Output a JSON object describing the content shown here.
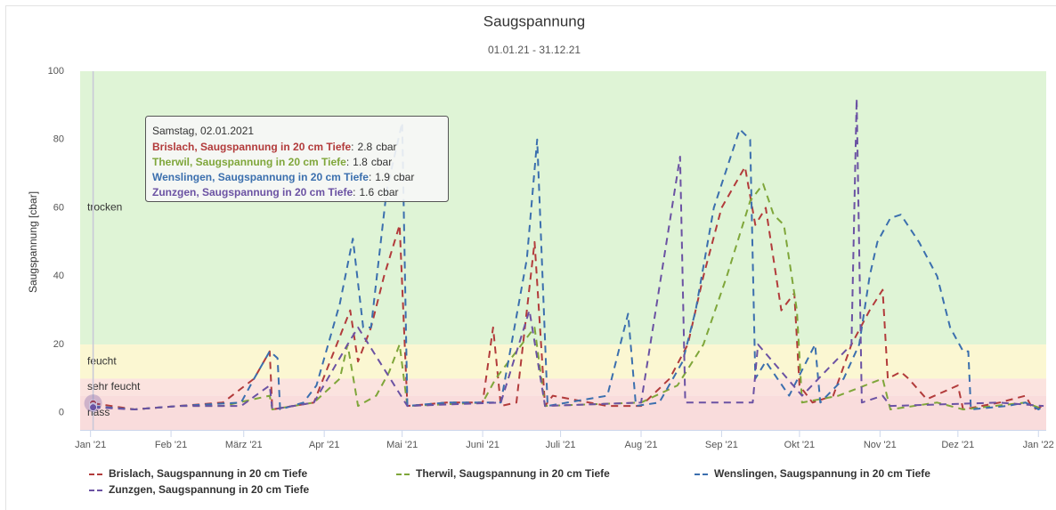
{
  "chart_data": {
    "type": "line",
    "title": "Saugspannung",
    "subtitle": "01.01.21 - 31.12.21",
    "y_label": "Saugspannung [cbar]",
    "ylim": [
      -5,
      100
    ],
    "yticks": [
      0,
      20,
      40,
      60,
      80,
      100
    ],
    "xlim": [
      "2020-12-28",
      "2022-01-04"
    ],
    "xticks": [
      {
        "value": "2021-01-01",
        "label": "Jan '21"
      },
      {
        "value": "2021-02-01",
        "label": "Feb '21"
      },
      {
        "value": "2021-03-01",
        "label": "März '21"
      },
      {
        "value": "2021-04-01",
        "label": "Apr '21"
      },
      {
        "value": "2021-05-01",
        "label": "Mai '21"
      },
      {
        "value": "2021-06-01",
        "label": "Juni '21"
      },
      {
        "value": "2021-07-01",
        "label": "Juli '21"
      },
      {
        "value": "2021-08-01",
        "label": "Aug '21"
      },
      {
        "value": "2021-09-01",
        "label": "Sep '21"
      },
      {
        "value": "2021-10-01",
        "label": "Okt '21"
      },
      {
        "value": "2021-11-01",
        "label": "Nov '21"
      },
      {
        "value": "2021-12-01",
        "label": "Dez '21"
      },
      {
        "value": "2022-01-01",
        "label": "Jan '22"
      }
    ],
    "plot_bands": [
      {
        "from": 20,
        "to": 100,
        "label": "trocken",
        "color": "#dff4d6"
      },
      {
        "from": 10,
        "to": 20,
        "label": "feucht",
        "color": "#fbf7d2"
      },
      {
        "from": 5,
        "to": 10,
        "label": "sehr feucht",
        "color": "#fbe3df"
      },
      {
        "from": -5,
        "to": 5,
        "label": "nass",
        "color": "#f9dcdc"
      }
    ],
    "series": [
      {
        "name": "Brislach, Saugspannung in 20 cm Tiefe",
        "color": "#b23b3b",
        "x": [
          "2021-01-02",
          "2021-01-18",
          "2021-02-04",
          "2021-02-21",
          "2021-03-05",
          "2021-03-11",
          "2021-03-12",
          "2021-03-28",
          "2021-04-11",
          "2021-04-14",
          "2021-04-19",
          "2021-04-24",
          "2021-04-30",
          "2021-05-03",
          "2021-05-18",
          "2021-06-01",
          "2021-06-05",
          "2021-06-08",
          "2021-06-14",
          "2021-06-21",
          "2021-06-25",
          "2021-06-28",
          "2021-07-19",
          "2021-08-01",
          "2021-08-12",
          "2021-08-19",
          "2021-08-25",
          "2021-09-01",
          "2021-09-10",
          "2021-09-14",
          "2021-09-18",
          "2021-09-24",
          "2021-09-29",
          "2021-10-01",
          "2021-10-06",
          "2021-10-14",
          "2021-10-21",
          "2021-10-28",
          "2021-11-02",
          "2021-11-04",
          "2021-11-09",
          "2021-11-12",
          "2021-11-19",
          "2021-12-01",
          "2021-12-03",
          "2021-12-17",
          "2021-12-27",
          "2021-12-30",
          "2022-01-03"
        ],
        "values": [
          2.8,
          1,
          2,
          3,
          10,
          18,
          1,
          3,
          30,
          15,
          25,
          40,
          55,
          2,
          3,
          3,
          25,
          2,
          3,
          50,
          2,
          5,
          2,
          2,
          10,
          20,
          40,
          60,
          72,
          55,
          60,
          30,
          35,
          8,
          3,
          5,
          20,
          30,
          36,
          10,
          12,
          10,
          4,
          8,
          1,
          3,
          5,
          1,
          2
        ]
      },
      {
        "name": "Therwil, Saugspannung in 20 cm Tiefe",
        "color": "#7fa63a",
        "x": [
          "2021-01-02",
          "2021-01-18",
          "2021-02-04",
          "2021-02-21",
          "2021-03-11",
          "2021-03-12",
          "2021-03-28",
          "2021-04-07",
          "2021-04-10",
          "2021-04-14",
          "2021-04-21",
          "2021-04-26",
          "2021-04-30",
          "2021-05-03",
          "2021-06-01",
          "2021-06-06",
          "2021-06-21",
          "2021-06-25",
          "2021-08-01",
          "2021-08-15",
          "2021-08-25",
          "2021-09-03",
          "2021-09-12",
          "2021-09-17",
          "2021-09-21",
          "2021-09-25",
          "2021-09-30",
          "2021-10-02",
          "2021-10-16",
          "2021-11-02",
          "2021-11-05",
          "2021-11-23",
          "2021-12-03",
          "2021-12-27",
          "2022-01-03"
        ],
        "values": [
          1.8,
          1,
          2,
          2,
          5,
          1,
          3,
          10,
          20,
          2,
          5,
          12,
          20,
          2,
          3,
          10,
          25,
          2,
          3,
          8,
          20,
          40,
          62,
          67,
          58,
          55,
          30,
          3,
          5,
          10,
          1,
          3,
          1,
          3,
          1
        ]
      },
      {
        "name": "Wenslingen, Saugspannung in 20 cm Tiefe",
        "color": "#3b6fae",
        "x": [
          "2021-01-02",
          "2021-01-18",
          "2021-02-04",
          "2021-02-28",
          "2021-03-05",
          "2021-03-11",
          "2021-03-14",
          "2021-03-15",
          "2021-03-24",
          "2021-03-29",
          "2021-04-07",
          "2021-04-12",
          "2021-04-16",
          "2021-04-19",
          "2021-04-25",
          "2021-05-01",
          "2021-05-03",
          "2021-05-18",
          "2021-06-08",
          "2021-06-18",
          "2021-06-22",
          "2021-06-26",
          "2021-07-19",
          "2021-07-27",
          "2021-07-30",
          "2021-08-08",
          "2021-08-17",
          "2021-08-22",
          "2021-08-29",
          "2021-09-08",
          "2021-09-12",
          "2021-09-14",
          "2021-09-18",
          "2021-09-27",
          "2021-10-07",
          "2021-10-09",
          "2021-10-18",
          "2021-10-24",
          "2021-10-28",
          "2021-10-31",
          "2021-11-05",
          "2021-11-09",
          "2021-11-16",
          "2021-11-23",
          "2021-11-28",
          "2021-12-03",
          "2021-12-05",
          "2021-12-06",
          "2021-12-20",
          "2021-12-27",
          "2022-01-01",
          "2022-01-03"
        ],
        "values": [
          1.9,
          1,
          2,
          3,
          10,
          18,
          16,
          1,
          3,
          8,
          32,
          51,
          25,
          25,
          65,
          85,
          2,
          3,
          3,
          45,
          80,
          2,
          5,
          29,
          2,
          3,
          15,
          30,
          60,
          83,
          80,
          10,
          15,
          5,
          20,
          3,
          10,
          20,
          40,
          50,
          57,
          58,
          50,
          40,
          25,
          18,
          18,
          1,
          2,
          3,
          1,
          2
        ]
      },
      {
        "name": "Zunzgen, Saugspannung in 20 cm Tiefe",
        "color": "#6b52a3",
        "x": [
          "2021-01-02",
          "2021-01-18",
          "2021-02-04",
          "2021-02-28",
          "2021-03-11",
          "2021-03-12",
          "2021-03-28",
          "2021-04-10",
          "2021-04-14",
          "2021-05-03",
          "2021-06-08",
          "2021-06-19",
          "2021-06-25",
          "2021-08-01",
          "2021-08-16",
          "2021-08-18",
          "2021-09-13",
          "2021-09-15",
          "2021-10-02",
          "2021-10-21",
          "2021-10-23",
          "2021-10-25",
          "2021-11-02",
          "2021-11-05",
          "2021-12-17",
          "2022-01-03"
        ],
        "values": [
          1.6,
          1,
          2,
          2,
          8,
          1,
          3,
          20,
          25,
          2,
          3,
          30,
          2,
          3,
          75,
          3,
          3,
          20,
          5,
          20,
          92,
          3,
          5,
          2,
          3,
          2
        ]
      }
    ],
    "tooltip": {
      "x": "2021-01-02",
      "title": "Samstag, 02.01.2021",
      "separator": ":",
      "unit": "cbar",
      "values": [
        2.8,
        1.8,
        1.9,
        1.6
      ]
    }
  }
}
